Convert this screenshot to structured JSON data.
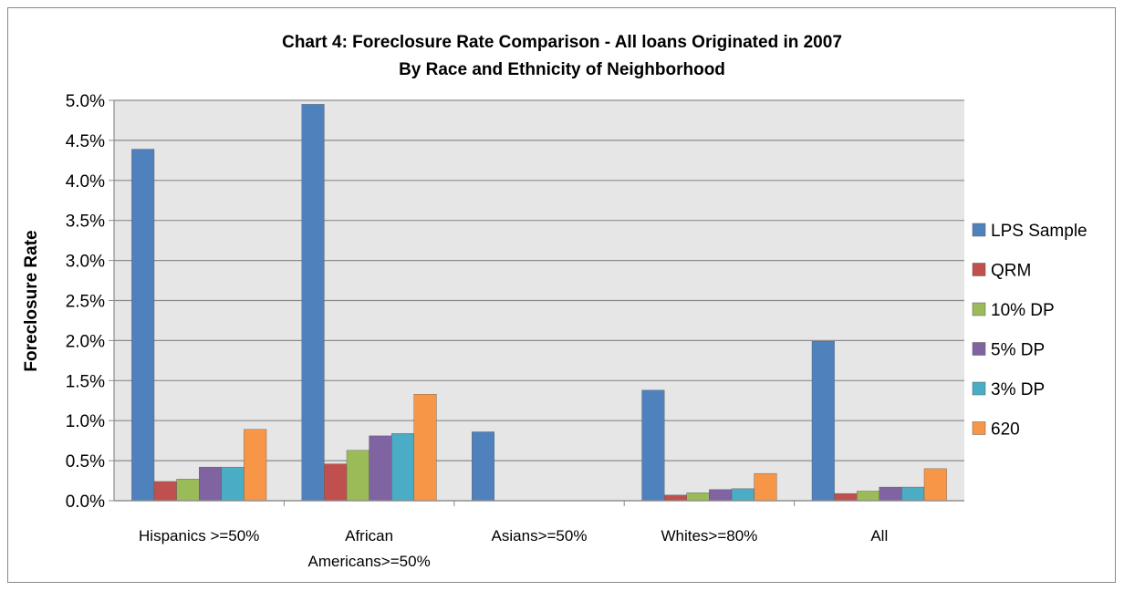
{
  "chart_data": {
    "type": "bar",
    "title": "Chart 4: Foreclosure Rate Comparison  - All loans Originated in 2007",
    "subtitle": "By Race and Ethnicity of Neighborhood",
    "xlabel": "",
    "ylabel": "Foreclosure Rate",
    "ylim": [
      0,
      5.0
    ],
    "yticks": [
      "0.0%",
      "0.5%",
      "1.0%",
      "1.5%",
      "2.0%",
      "2.5%",
      "3.0%",
      "3.5%",
      "4.0%",
      "4.5%",
      "5.0%"
    ],
    "categories": [
      [
        "Hispanics >=50%"
      ],
      [
        "African",
        "Americans>=50%"
      ],
      [
        "Asians>=50%"
      ],
      [
        "Whites>=80%"
      ],
      [
        "All"
      ]
    ],
    "grid": true,
    "legend_position": "right",
    "series": [
      {
        "name": "LPS Sample",
        "color": "#4F81BD",
        "values": [
          4.39,
          4.95,
          0.86,
          1.38,
          1.99
        ]
      },
      {
        "name": "QRM",
        "color": "#C0504D",
        "values": [
          0.24,
          0.46,
          0,
          0.07,
          0.09
        ]
      },
      {
        "name": "10% DP",
        "color": "#9BBB59",
        "values": [
          0.27,
          0.63,
          0,
          0.1,
          0.12
        ]
      },
      {
        "name": "5% DP",
        "color": "#8064A2",
        "values": [
          0.42,
          0.81,
          0,
          0.14,
          0.17
        ]
      },
      {
        "name": "3% DP",
        "color": "#4BACC6",
        "values": [
          0.42,
          0.84,
          0,
          0.15,
          0.17
        ]
      },
      {
        "name": "620",
        "color": "#F79646",
        "values": [
          0.89,
          1.33,
          0,
          0.34,
          0.4
        ]
      }
    ]
  }
}
